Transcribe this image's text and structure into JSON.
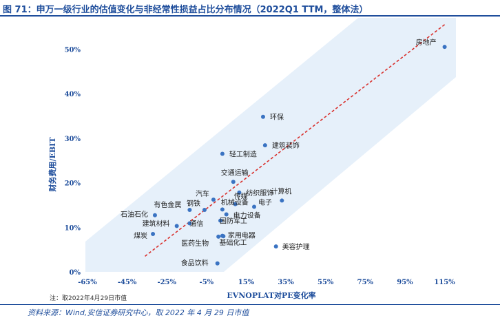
{
  "header": {
    "title": "图 71：申万一级行业的估值变化与非经常性损益占比分布情况（2022Q1 TTM，整体法）"
  },
  "footer": {
    "note": "注：取2022年4月29日市值",
    "source": "资料来源：Wind,安信证券研究中心，取 2022 年 4 月 29 日市值"
  },
  "colors": {
    "accent": "#1f4e9c",
    "point": "#3a73c2",
    "trend": "#d9302c",
    "band": "#e6f0fa"
  },
  "chart_data": {
    "type": "scatter",
    "title": "",
    "xlabel": "EVNOPLAT对PE变化率",
    "ylabel": "财务费用/EBIT",
    "xlim": [
      -0.65,
      1.2
    ],
    "ylim": [
      0,
      0.55
    ],
    "x_ticks": [
      -0.65,
      -0.45,
      -0.25,
      -0.05,
      0.15,
      0.35,
      0.55,
      0.75,
      0.95,
      1.15
    ],
    "x_tick_labels": [
      "-65%",
      "-45%",
      "-25%",
      "-5%",
      "15%",
      "35%",
      "55%",
      "75%",
      "95%",
      "115%"
    ],
    "y_ticks": [
      0,
      0.1,
      0.2,
      0.3,
      0.4,
      0.5
    ],
    "y_tick_labels": [
      "0%",
      "10%",
      "20%",
      "30%",
      "40%",
      "50%"
    ],
    "grid": false,
    "trendline": {
      "style": "dashed",
      "x": [
        -0.36,
        1.15
      ],
      "y": [
        0.035,
        0.555
      ]
    },
    "points": [
      {
        "label": "房地产",
        "x": 1.15,
        "y": 0.505
      },
      {
        "label": "环保",
        "x": 0.235,
        "y": 0.348
      },
      {
        "label": "建筑装饰",
        "x": 0.245,
        "y": 0.284
      },
      {
        "label": "轻工制造",
        "x": 0.03,
        "y": 0.265
      },
      {
        "label": "交通运输",
        "x": 0.085,
        "y": 0.202
      },
      {
        "label": "纺织服饰",
        "x": 0.115,
        "y": 0.178
      },
      {
        "label": "计算机",
        "x": 0.33,
        "y": 0.16
      },
      {
        "label": "汽车",
        "x": -0.015,
        "y": 0.162
      },
      {
        "label": "传媒",
        "x": 0.095,
        "y": 0.152
      },
      {
        "label": "电子",
        "x": 0.19,
        "y": 0.146
      },
      {
        "label": "有色金属",
        "x": -0.135,
        "y": 0.139
      },
      {
        "label": "钢铁",
        "x": -0.06,
        "y": 0.139
      },
      {
        "label": "石油石化",
        "x": -0.31,
        "y": 0.127
      },
      {
        "label": "机械设备",
        "x": 0.03,
        "y": 0.14
      },
      {
        "label": "电力设备",
        "x": 0.05,
        "y": 0.129
      },
      {
        "label": "建筑材料",
        "x": -0.2,
        "y": 0.103
      },
      {
        "label": "通信",
        "x": -0.135,
        "y": 0.109
      },
      {
        "label": "国防军工",
        "x": 0.02,
        "y": 0.115
      },
      {
        "label": "煤炭",
        "x": -0.32,
        "y": 0.085
      },
      {
        "label": "医药生物",
        "x": 0.01,
        "y": 0.079
      },
      {
        "label": "家用电器",
        "x": 0.03,
        "y": 0.081
      },
      {
        "label": "基础化工",
        "x": 0.035,
        "y": 0.08
      },
      {
        "label": "美容护理",
        "x": 0.3,
        "y": 0.057
      },
      {
        "label": "食品饮料",
        "x": 0.005,
        "y": 0.019
      }
    ]
  }
}
